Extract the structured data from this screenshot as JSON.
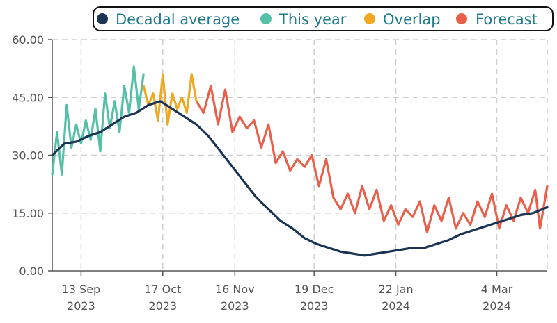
{
  "chart_data": {
    "type": "line",
    "title": "",
    "xlabel": "",
    "ylabel": "",
    "ylim": [
      0,
      60
    ],
    "yticks": [
      "0.00",
      "15.00",
      "30.00",
      "45.00",
      "60.00"
    ],
    "xticks": [
      {
        "date": "2023-09-13",
        "line1": "13 Sep",
        "line2": "2023"
      },
      {
        "date": "2023-10-17",
        "line1": "17 Oct",
        "line2": "2023"
      },
      {
        "date": "2023-11-16",
        "line1": "16 Nov",
        "line2": "2023"
      },
      {
        "date": "2023-12-19",
        "line1": "19 Dec",
        "line2": "2023"
      },
      {
        "date": "2024-01-22",
        "line1": "22 Jan",
        "line2": "2024"
      },
      {
        "date": "2024-03-04",
        "line1": "4 Mar",
        "line2": "2024"
      }
    ],
    "xlim": [
      "2023-09-01",
      "2024-03-25"
    ],
    "grid": true,
    "legend_position": "top",
    "series": [
      {
        "name": "Decadal average",
        "color": "#1b3454",
        "points": [
          [
            "2023-09-01",
            30
          ],
          [
            "2023-09-06",
            33
          ],
          [
            "2023-09-11",
            33.5
          ],
          [
            "2023-09-16",
            35
          ],
          [
            "2023-09-21",
            36
          ],
          [
            "2023-09-26",
            38
          ],
          [
            "2023-10-01",
            40
          ],
          [
            "2023-10-06",
            41
          ],
          [
            "2023-10-11",
            43
          ],
          [
            "2023-10-16",
            44
          ],
          [
            "2023-10-21",
            42
          ],
          [
            "2023-10-26",
            40
          ],
          [
            "2023-10-31",
            38
          ],
          [
            "2023-11-05",
            35
          ],
          [
            "2023-11-10",
            31
          ],
          [
            "2023-11-15",
            27
          ],
          [
            "2023-11-20",
            23
          ],
          [
            "2023-11-25",
            19
          ],
          [
            "2023-11-30",
            16
          ],
          [
            "2023-12-05",
            13
          ],
          [
            "2023-12-10",
            11
          ],
          [
            "2023-12-15",
            8.5
          ],
          [
            "2023-12-20",
            7
          ],
          [
            "2023-12-25",
            6
          ],
          [
            "2023-12-30",
            5
          ],
          [
            "2024-01-04",
            4.5
          ],
          [
            "2024-01-09",
            4
          ],
          [
            "2024-01-14",
            4.5
          ],
          [
            "2024-01-19",
            5
          ],
          [
            "2024-01-24",
            5.5
          ],
          [
            "2024-01-29",
            6
          ],
          [
            "2024-02-03",
            6
          ],
          [
            "2024-02-08",
            7
          ],
          [
            "2024-02-13",
            8
          ],
          [
            "2024-02-18",
            9.5
          ],
          [
            "2024-02-23",
            10.5
          ],
          [
            "2024-02-28",
            11.5
          ],
          [
            "2024-03-04",
            12.5
          ],
          [
            "2024-03-09",
            13.5
          ],
          [
            "2024-03-14",
            14.5
          ],
          [
            "2024-03-19",
            15
          ],
          [
            "2024-03-25",
            16.5
          ]
        ]
      },
      {
        "name": "This year",
        "color": "#55c0a8",
        "points": [
          [
            "2023-09-01",
            25
          ],
          [
            "2023-09-03",
            36
          ],
          [
            "2023-09-05",
            25
          ],
          [
            "2023-09-07",
            43
          ],
          [
            "2023-09-09",
            32
          ],
          [
            "2023-09-11",
            38
          ],
          [
            "2023-09-13",
            33
          ],
          [
            "2023-09-15",
            39
          ],
          [
            "2023-09-17",
            34
          ],
          [
            "2023-09-19",
            42
          ],
          [
            "2023-09-21",
            31
          ],
          [
            "2023-09-23",
            46
          ],
          [
            "2023-09-25",
            37
          ],
          [
            "2023-09-27",
            44
          ],
          [
            "2023-09-29",
            36
          ],
          [
            "2023-10-01",
            48
          ],
          [
            "2023-10-03",
            41
          ],
          [
            "2023-10-05",
            53
          ],
          [
            "2023-10-07",
            42
          ],
          [
            "2023-10-09",
            51
          ]
        ]
      },
      {
        "name": "Overlap",
        "color": "#f0a820",
        "points": [
          [
            "2023-10-09",
            48
          ],
          [
            "2023-10-11",
            43
          ],
          [
            "2023-10-13",
            46
          ],
          [
            "2023-10-15",
            39
          ],
          [
            "2023-10-17",
            51
          ],
          [
            "2023-10-19",
            38
          ],
          [
            "2023-10-21",
            46
          ],
          [
            "2023-10-23",
            42
          ],
          [
            "2023-10-25",
            45
          ],
          [
            "2023-10-27",
            41
          ],
          [
            "2023-10-29",
            51
          ],
          [
            "2023-10-31",
            44
          ]
        ]
      },
      {
        "name": "Forecast",
        "color": "#e8604c",
        "points": [
          [
            "2023-10-31",
            44
          ],
          [
            "2023-11-03",
            41
          ],
          [
            "2023-11-06",
            48
          ],
          [
            "2023-11-09",
            38
          ],
          [
            "2023-11-12",
            47
          ],
          [
            "2023-11-15",
            36
          ],
          [
            "2023-11-18",
            40
          ],
          [
            "2023-11-21",
            37
          ],
          [
            "2023-11-24",
            39
          ],
          [
            "2023-11-27",
            32
          ],
          [
            "2023-11-30",
            38
          ],
          [
            "2023-12-03",
            28
          ],
          [
            "2023-12-06",
            31
          ],
          [
            "2023-12-09",
            26
          ],
          [
            "2023-12-12",
            29
          ],
          [
            "2023-12-15",
            27
          ],
          [
            "2023-12-18",
            30
          ],
          [
            "2023-12-21",
            22
          ],
          [
            "2023-12-24",
            29
          ],
          [
            "2023-12-27",
            19
          ],
          [
            "2023-12-30",
            16
          ],
          [
            "2024-01-02",
            20
          ],
          [
            "2024-01-05",
            15
          ],
          [
            "2024-01-08",
            22
          ],
          [
            "2024-01-11",
            16
          ],
          [
            "2024-01-14",
            21
          ],
          [
            "2024-01-17",
            13
          ],
          [
            "2024-01-20",
            17
          ],
          [
            "2024-01-23",
            12
          ],
          [
            "2024-01-26",
            16
          ],
          [
            "2024-01-29",
            14
          ],
          [
            "2024-02-01",
            18
          ],
          [
            "2024-02-04",
            10
          ],
          [
            "2024-02-07",
            17
          ],
          [
            "2024-02-10",
            13
          ],
          [
            "2024-02-13",
            19
          ],
          [
            "2024-02-16",
            11
          ],
          [
            "2024-02-19",
            15
          ],
          [
            "2024-02-22",
            12
          ],
          [
            "2024-02-25",
            18
          ],
          [
            "2024-02-28",
            14
          ],
          [
            "2024-03-02",
            20
          ],
          [
            "2024-03-05",
            11
          ],
          [
            "2024-03-08",
            17
          ],
          [
            "2024-03-11",
            13
          ],
          [
            "2024-03-14",
            19
          ],
          [
            "2024-03-17",
            15
          ],
          [
            "2024-03-20",
            21
          ],
          [
            "2024-03-22",
            11
          ],
          [
            "2024-03-25",
            22
          ]
        ]
      }
    ]
  }
}
